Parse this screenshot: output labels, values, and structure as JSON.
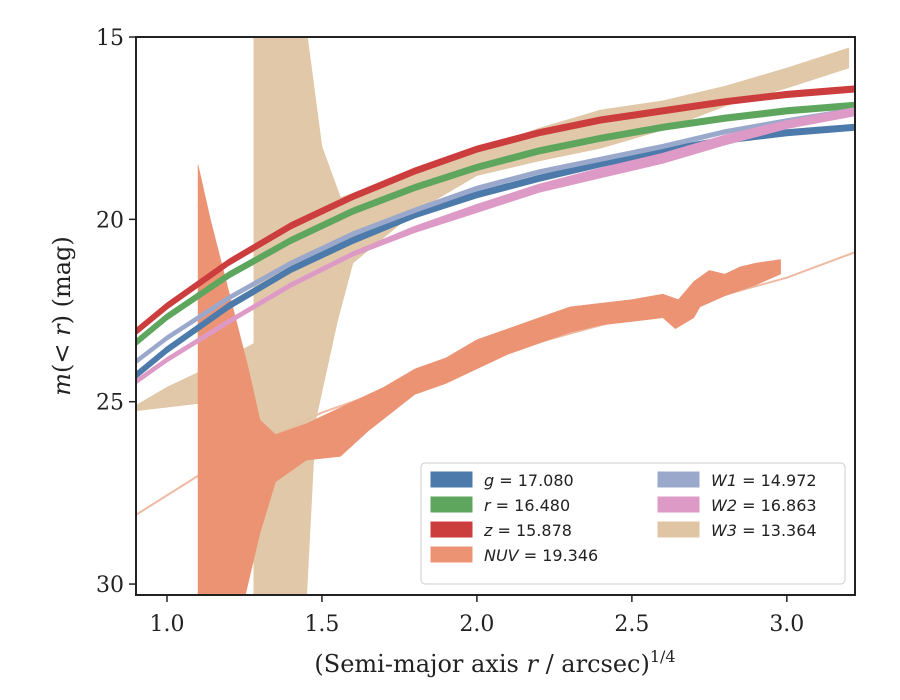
{
  "chart_data": {
    "type": "area",
    "xlabel": "(Semi-major axis r / arcsec)^1/4",
    "ylabel": "m(< r) (mag)",
    "xlim": [
      0.9,
      3.22
    ],
    "ylim": [
      30.3,
      15.0
    ],
    "y_inverted": true,
    "xticks": [
      "1.0",
      "1.5",
      "2.0",
      "2.5",
      "3.0"
    ],
    "yticks": [
      "15",
      "20",
      "25",
      "30"
    ],
    "legend_position": "lower-right",
    "legend_columns": 2,
    "series": [
      {
        "name": "g = 17.080",
        "label_prefix": "g",
        "label_value": "17.080",
        "color": "#4c7bab",
        "upper": [
          [
            0.9,
            24.2
          ],
          [
            1.0,
            23.5
          ],
          [
            1.2,
            22.3
          ],
          [
            1.4,
            21.3
          ],
          [
            1.6,
            20.5
          ],
          [
            1.8,
            19.8
          ],
          [
            2.0,
            19.25
          ],
          [
            2.2,
            18.8
          ],
          [
            2.4,
            18.4
          ],
          [
            2.6,
            18.05
          ],
          [
            2.8,
            17.75
          ],
          [
            3.0,
            17.55
          ],
          [
            3.22,
            17.4
          ]
        ],
        "lower": [
          [
            0.9,
            24.35
          ],
          [
            1.0,
            23.65
          ],
          [
            1.2,
            22.45
          ],
          [
            1.4,
            21.45
          ],
          [
            1.6,
            20.65
          ],
          [
            1.8,
            19.95
          ],
          [
            2.0,
            19.4
          ],
          [
            2.2,
            18.95
          ],
          [
            2.4,
            18.55
          ],
          [
            2.6,
            18.2
          ],
          [
            2.8,
            17.9
          ],
          [
            3.0,
            17.7
          ],
          [
            3.22,
            17.55
          ]
        ]
      },
      {
        "name": "r = 16.480",
        "label_prefix": "r",
        "label_value": "16.480",
        "color": "#5ea65e",
        "upper": [
          [
            0.9,
            23.3
          ],
          [
            1.0,
            22.6
          ],
          [
            1.2,
            21.45
          ],
          [
            1.4,
            20.5
          ],
          [
            1.6,
            19.7
          ],
          [
            1.8,
            19.05
          ],
          [
            2.0,
            18.5
          ],
          [
            2.2,
            18.05
          ],
          [
            2.4,
            17.7
          ],
          [
            2.6,
            17.4
          ],
          [
            2.8,
            17.15
          ],
          [
            3.0,
            16.95
          ],
          [
            3.22,
            16.8
          ]
        ],
        "lower": [
          [
            0.9,
            23.45
          ],
          [
            1.0,
            22.75
          ],
          [
            1.2,
            21.6
          ],
          [
            1.4,
            20.65
          ],
          [
            1.6,
            19.85
          ],
          [
            1.8,
            19.2
          ],
          [
            2.0,
            18.65
          ],
          [
            2.2,
            18.2
          ],
          [
            2.4,
            17.85
          ],
          [
            2.6,
            17.55
          ],
          [
            2.8,
            17.3
          ],
          [
            3.0,
            17.1
          ],
          [
            3.22,
            16.95
          ]
        ]
      },
      {
        "name": "z = 15.878",
        "label_prefix": "z",
        "label_value": "15.878",
        "color": "#cc3d3d",
        "upper": [
          [
            0.9,
            23.0
          ],
          [
            1.0,
            22.3
          ],
          [
            1.2,
            21.1
          ],
          [
            1.4,
            20.1
          ],
          [
            1.6,
            19.3
          ],
          [
            1.8,
            18.6
          ],
          [
            2.0,
            18.0
          ],
          [
            2.2,
            17.55
          ],
          [
            2.4,
            17.2
          ],
          [
            2.6,
            16.95
          ],
          [
            2.8,
            16.7
          ],
          [
            3.0,
            16.5
          ],
          [
            3.22,
            16.35
          ]
        ],
        "lower": [
          [
            0.9,
            23.15
          ],
          [
            1.0,
            22.45
          ],
          [
            1.2,
            21.25
          ],
          [
            1.4,
            20.25
          ],
          [
            1.6,
            19.45
          ],
          [
            1.8,
            18.75
          ],
          [
            2.0,
            18.15
          ],
          [
            2.2,
            17.7
          ],
          [
            2.4,
            17.35
          ],
          [
            2.6,
            17.1
          ],
          [
            2.8,
            16.85
          ],
          [
            3.0,
            16.65
          ],
          [
            3.22,
            16.5
          ]
        ]
      },
      {
        "name": "NUV = 19.346",
        "label_prefix": "NUV",
        "label_value": "19.346",
        "color": "#eb9373",
        "upper": [
          [
            1.1,
            18.5
          ],
          [
            1.14,
            20.0
          ],
          [
            1.2,
            22.0
          ],
          [
            1.26,
            24.0
          ],
          [
            1.3,
            25.5
          ],
          [
            1.35,
            25.9
          ],
          [
            1.45,
            25.6
          ],
          [
            1.55,
            25.2
          ],
          [
            1.7,
            24.6
          ],
          [
            1.8,
            24.1
          ],
          [
            1.9,
            23.8
          ],
          [
            2.0,
            23.3
          ],
          [
            2.1,
            23.0
          ],
          [
            2.2,
            22.7
          ],
          [
            2.3,
            22.4
          ],
          [
            2.4,
            22.3
          ],
          [
            2.5,
            22.2
          ],
          [
            2.6,
            22.05
          ],
          [
            2.65,
            22.2
          ],
          [
            2.7,
            21.7
          ],
          [
            2.75,
            21.4
          ],
          [
            2.8,
            21.5
          ],
          [
            2.85,
            21.3
          ],
          [
            2.9,
            21.2
          ],
          [
            2.98,
            21.1
          ]
        ],
        "lower": [
          [
            1.1,
            30.4
          ],
          [
            1.25,
            30.4
          ],
          [
            1.3,
            28.6
          ],
          [
            1.35,
            27.2
          ],
          [
            1.45,
            26.6
          ],
          [
            1.56,
            26.5
          ],
          [
            1.65,
            25.8
          ],
          [
            1.8,
            24.8
          ],
          [
            1.9,
            24.5
          ],
          [
            2.0,
            24.1
          ],
          [
            2.1,
            23.7
          ],
          [
            2.2,
            23.4
          ],
          [
            2.3,
            23.1
          ],
          [
            2.4,
            22.9
          ],
          [
            2.5,
            22.8
          ],
          [
            2.6,
            22.7
          ],
          [
            2.64,
            23.0
          ],
          [
            2.7,
            22.7
          ],
          [
            2.72,
            22.4
          ],
          [
            2.8,
            22.1
          ],
          [
            2.9,
            21.8
          ],
          [
            2.98,
            21.5
          ]
        ]
      },
      {
        "name": "W1 = 14.972",
        "label_prefix": "W1",
        "label_value": "14.972",
        "color": "#9aa8cc",
        "upper": [
          [
            0.9,
            23.85
          ],
          [
            1.0,
            23.2
          ],
          [
            1.2,
            22.1
          ],
          [
            1.4,
            21.15
          ],
          [
            1.6,
            20.35
          ],
          [
            1.8,
            19.7
          ],
          [
            2.0,
            19.1
          ],
          [
            2.2,
            18.65
          ],
          [
            2.4,
            18.3
          ],
          [
            2.6,
            17.95
          ],
          [
            2.8,
            17.55
          ],
          [
            3.0,
            17.25
          ],
          [
            3.22,
            16.95
          ]
        ],
        "lower": [
          [
            0.9,
            23.95
          ],
          [
            1.0,
            23.3
          ],
          [
            1.2,
            22.2
          ],
          [
            1.4,
            21.25
          ],
          [
            1.6,
            20.45
          ],
          [
            1.8,
            19.8
          ],
          [
            2.0,
            19.2
          ],
          [
            2.2,
            18.75
          ],
          [
            2.4,
            18.4
          ],
          [
            2.6,
            18.05
          ],
          [
            2.8,
            17.65
          ],
          [
            3.0,
            17.35
          ],
          [
            3.22,
            17.05
          ]
        ]
      },
      {
        "name": "W2 = 16.863",
        "label_prefix": "W2",
        "label_value": "16.863",
        "color": "#de9ac6",
        "upper": [
          [
            0.9,
            24.4
          ],
          [
            1.0,
            23.8
          ],
          [
            1.2,
            22.75
          ],
          [
            1.4,
            21.75
          ],
          [
            1.6,
            20.9
          ],
          [
            1.8,
            20.2
          ],
          [
            2.0,
            19.6
          ],
          [
            2.2,
            19.05
          ],
          [
            2.4,
            18.6
          ],
          [
            2.6,
            18.2
          ],
          [
            2.8,
            17.7
          ],
          [
            3.0,
            17.3
          ],
          [
            3.22,
            16.95
          ]
        ],
        "lower": [
          [
            0.9,
            24.5
          ],
          [
            1.0,
            23.9
          ],
          [
            1.2,
            22.85
          ],
          [
            1.4,
            21.85
          ],
          [
            1.6,
            21.0
          ],
          [
            1.8,
            20.35
          ],
          [
            2.0,
            19.8
          ],
          [
            2.2,
            19.25
          ],
          [
            2.4,
            18.85
          ],
          [
            2.6,
            18.45
          ],
          [
            2.8,
            17.95
          ],
          [
            3.0,
            17.5
          ],
          [
            3.22,
            17.15
          ]
        ]
      },
      {
        "name": "W3 = 13.364",
        "label_prefix": "W3",
        "label_value": "13.364",
        "color": "#dfc5a3",
        "upper": [
          [
            0.9,
            25.1
          ],
          [
            1.0,
            24.6
          ],
          [
            1.15,
            24.0
          ],
          [
            1.28,
            23.4
          ],
          [
            1.28,
            14.8
          ],
          [
            1.45,
            14.8
          ],
          [
            1.5,
            18.0
          ],
          [
            1.56,
            19.4
          ],
          [
            1.7,
            19.0
          ],
          [
            1.9,
            18.4
          ],
          [
            2.0,
            18.1
          ],
          [
            2.2,
            17.5
          ],
          [
            2.4,
            17.0
          ],
          [
            2.6,
            16.75
          ],
          [
            2.8,
            16.35
          ],
          [
            3.0,
            15.85
          ],
          [
            3.2,
            15.3
          ]
        ],
        "lower": [
          [
            3.2,
            15.85
          ],
          [
            3.0,
            16.4
          ],
          [
            2.8,
            16.9
          ],
          [
            2.6,
            17.55
          ],
          [
            2.4,
            18.05
          ],
          [
            2.2,
            18.4
          ],
          [
            2.0,
            18.8
          ],
          [
            1.8,
            19.8
          ],
          [
            1.6,
            21.2
          ],
          [
            1.55,
            22.8
          ],
          [
            1.48,
            25.5
          ],
          [
            1.45,
            30.4
          ],
          [
            1.28,
            30.4
          ],
          [
            1.28,
            25.4
          ],
          [
            1.15,
            25.0
          ],
          [
            1.0,
            25.15
          ],
          [
            0.9,
            25.25
          ]
        ]
      }
    ],
    "faint_line": {
      "color": "#f0b9a2",
      "points": [
        [
          0.9,
          28.1
        ],
        [
          1.2,
          26.5
        ],
        [
          1.5,
          25.3
        ],
        [
          1.8,
          24.4
        ],
        [
          2.1,
          23.6
        ],
        [
          2.4,
          22.9
        ],
        [
          2.7,
          22.3
        ],
        [
          3.0,
          21.6
        ],
        [
          3.22,
          20.9
        ]
      ]
    }
  }
}
